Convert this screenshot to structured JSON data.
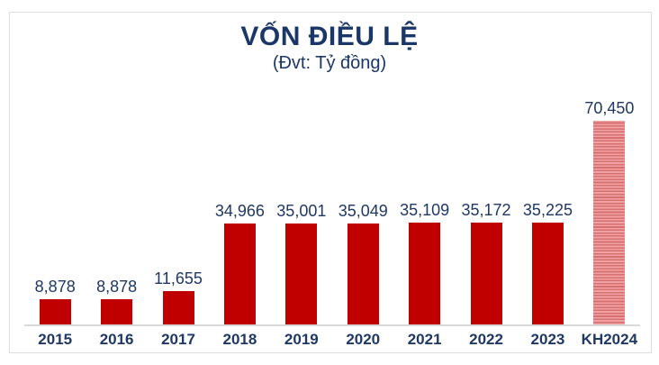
{
  "chart_data": {
    "type": "bar",
    "title": "VỐN ĐIỀU LỆ",
    "subtitle": "(Đvt: Tỷ đồng)",
    "categories": [
      "2015",
      "2016",
      "2017",
      "2018",
      "2019",
      "2020",
      "2021",
      "2022",
      "2023",
      "KH2024"
    ],
    "values": [
      8878,
      8878,
      11655,
      34966,
      35001,
      35049,
      35109,
      35172,
      35225,
      70450
    ],
    "value_labels": [
      "8,878",
      "8,878",
      "11,655",
      "34,966",
      "35,001",
      "35,049",
      "35,109",
      "35,172",
      "35,225",
      "70,450"
    ],
    "striped_index": 9,
    "xlabel": "",
    "ylabel": "",
    "ylim": [
      0,
      70450
    ],
    "grid": false,
    "legend": "none",
    "colors": {
      "bar_solid": "#c00000",
      "bar_striped_light": "#efa2a3",
      "bar_striped_dark": "#d86f71",
      "text_navy": "#1f3864",
      "axis_line": "#d9d9d9",
      "frame_border": "#dedede"
    }
  }
}
